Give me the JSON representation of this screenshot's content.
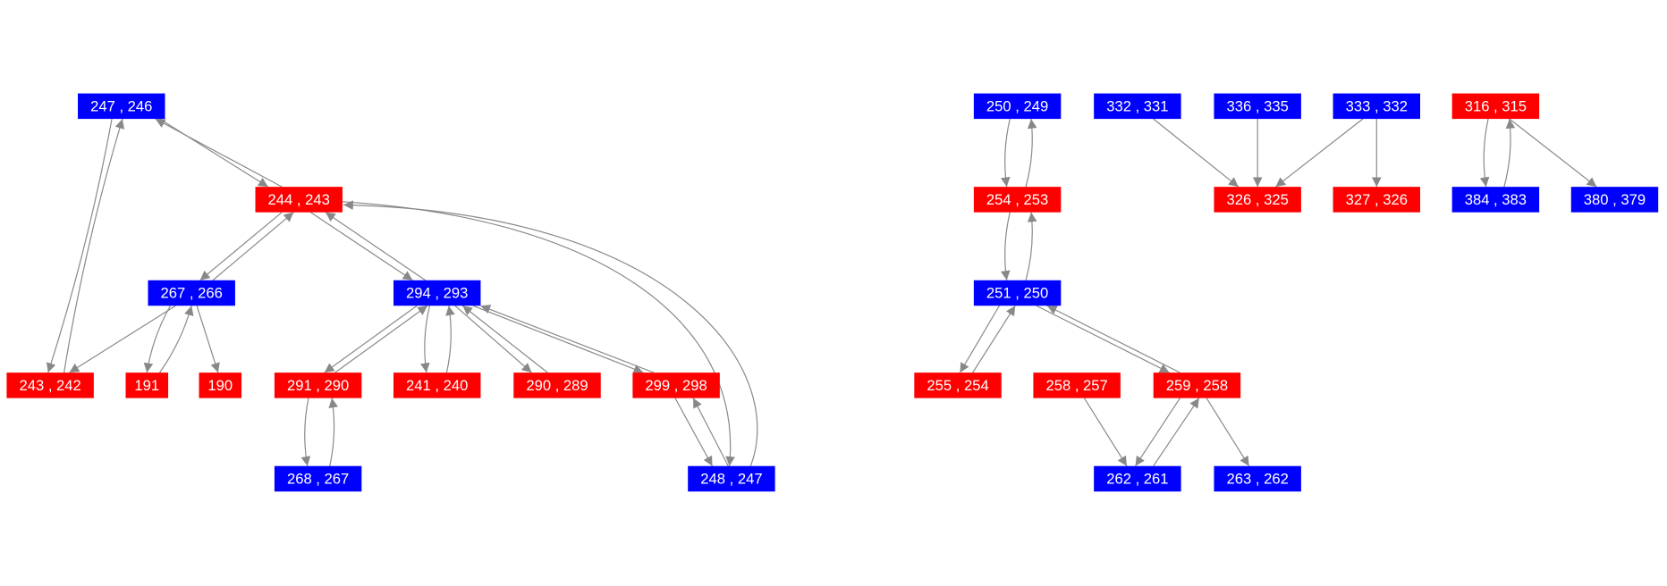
{
  "nodes": [
    {
      "label": "247 , 246"
    },
    {
      "label": "244 , 243"
    },
    {
      "label": "267 , 266"
    },
    {
      "label": "294 , 293"
    },
    {
      "label": "243 , 242"
    },
    {
      "label": "191"
    },
    {
      "label": "190"
    },
    {
      "label": "291 , 290"
    },
    {
      "label": "241 , 240"
    },
    {
      "label": "290 , 289"
    },
    {
      "label": "299 , 298"
    },
    {
      "label": "268 , 267"
    },
    {
      "label": "248 , 247"
    },
    {
      "label": "250 , 249"
    },
    {
      "label": "332 , 331"
    },
    {
      "label": "336 , 335"
    },
    {
      "label": "333 , 332"
    },
    {
      "label": "316 , 315"
    },
    {
      "label": "254 , 253"
    },
    {
      "label": "326 , 325"
    },
    {
      "label": "327 , 326"
    },
    {
      "label": "384 , 383"
    },
    {
      "label": "380 , 379"
    },
    {
      "label": "251 , 250"
    },
    {
      "label": "255 , 254"
    },
    {
      "label": "258 , 257"
    },
    {
      "label": "259 , 258"
    },
    {
      "label": "262 , 261"
    },
    {
      "label": "263 , 262"
    }
  ]
}
